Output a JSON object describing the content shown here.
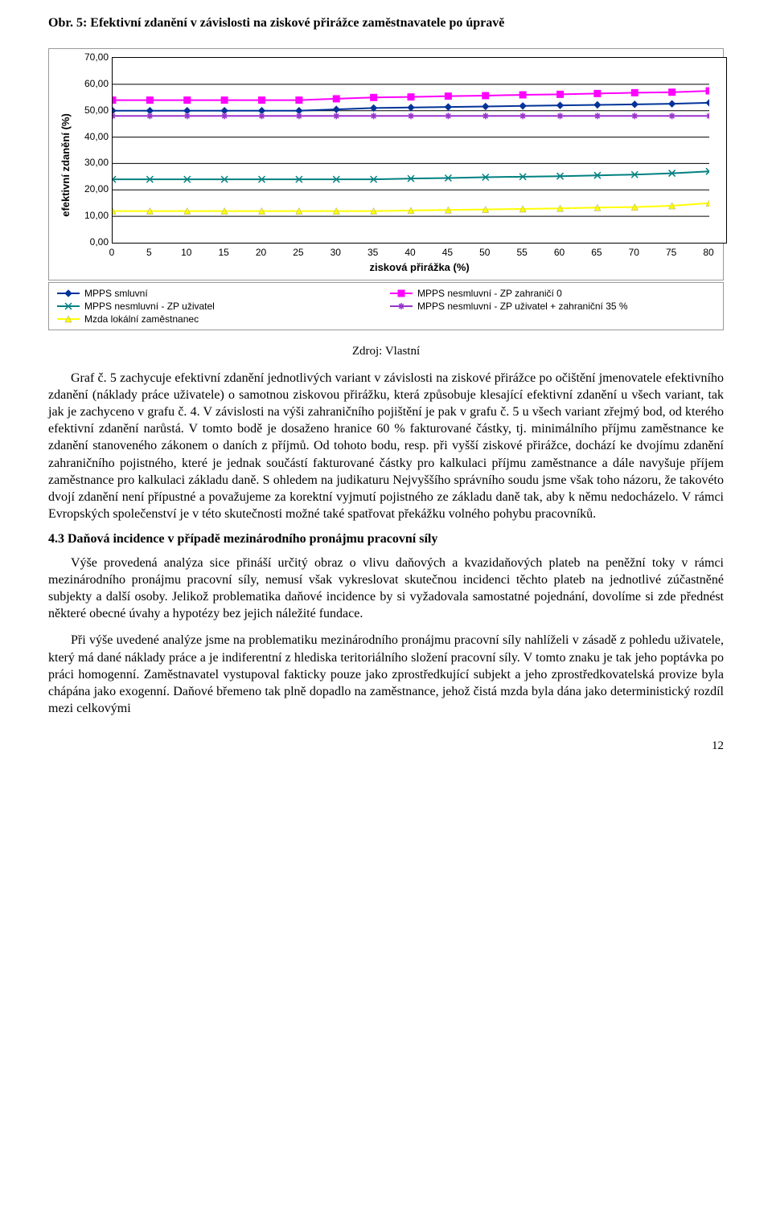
{
  "figure_caption": "Obr. 5: Efektivní zdanění v závislosti na ziskové přirážce zaměstnavatele po úpravě",
  "chart": {
    "type": "line",
    "ylabel": "efektivní zdanění (%)",
    "xlabel": "zisková přirážka (%)",
    "ylim": [
      0,
      70
    ],
    "ytick_step": 10,
    "ytick_labels": [
      "0,00",
      "10,00",
      "20,00",
      "30,00",
      "40,00",
      "50,00",
      "60,00",
      "70,00"
    ],
    "xlim": [
      0,
      80
    ],
    "xtick_step": 5,
    "xtick_labels": [
      "0",
      "5",
      "10",
      "15",
      "20",
      "25",
      "30",
      "35",
      "40",
      "45",
      "50",
      "55",
      "60",
      "65",
      "70",
      "75",
      "80"
    ],
    "background_color": "#ffffff",
    "grid_color": "#000000",
    "label_fontsize": 13,
    "tick_fontsize": 12,
    "series": [
      {
        "name": "MPPS smluvní",
        "color": "#003399",
        "marker": "diamond",
        "line_width": 2,
        "values": [
          50,
          50,
          50,
          50,
          50,
          50,
          50.5,
          51,
          51.2,
          51.4,
          51.6,
          51.8,
          52,
          52.2,
          52.4,
          52.6,
          53
        ]
      },
      {
        "name": "MPPS nesmluvní - ZP zahraničí 0",
        "color": "#ff00ff",
        "marker": "square",
        "line_width": 2,
        "values": [
          54,
          54,
          54,
          54,
          54,
          54,
          54.5,
          55,
          55.2,
          55.5,
          55.7,
          56,
          56.2,
          56.5,
          56.8,
          57,
          57.5
        ]
      },
      {
        "name": "MPPS nesmluvní - ZP uživatel",
        "color": "#008080",
        "marker": "x",
        "line_width": 2,
        "values": [
          24,
          24,
          24,
          24,
          24,
          24,
          24,
          24,
          24.3,
          24.5,
          24.8,
          25,
          25.2,
          25.5,
          25.8,
          26.3,
          27
        ]
      },
      {
        "name": "MPPS nesmluvní - ZP uživatel + zahraniční 35 %",
        "color": "#9933cc",
        "marker": "star",
        "line_width": 2,
        "values": [
          48,
          48,
          48,
          48,
          48,
          48,
          48,
          48,
          48,
          48,
          48,
          48,
          48,
          48,
          48,
          48,
          48
        ]
      },
      {
        "name": "Mzda lokální zaměstnanec",
        "color": "#ffff00",
        "marker": "triangle",
        "line_width": 2,
        "values": [
          12,
          12,
          12,
          12,
          12,
          12,
          12,
          12,
          12.2,
          12.4,
          12.6,
          12.8,
          13,
          13.3,
          13.5,
          14,
          15
        ]
      }
    ]
  },
  "source_line": "Zdroj: Vlastní",
  "para1": "Graf č. 5 zachycuje efektivní zdanění jednotlivých variant v závislosti na ziskové přirážce po očištění jmenovatele efektivního zdanění (náklady práce uživatele) o samotnou ziskovou přirážku, která způsobuje klesající efektivní zdanění u všech variant, tak jak je zachyceno v grafu č. 4. V závislosti na výši zahraničního pojištění je pak v grafu č. 5 u všech variant zřejmý bod, od kterého efektivní zdanění narůstá. V tomto bodě je dosaženo hranice 60 % fakturované částky, tj. minimálního příjmu zaměstnance ke zdanění stanoveného zákonem o daních z příjmů. Od tohoto bodu, resp. při vyšší ziskové přirážce, dochází ke dvojímu zdanění zahraničního pojistného, které je jednak součástí fakturované částky pro kalkulaci příjmu zaměstnance a dále navyšuje příjem zaměstnance pro kalkulaci základu daně. S ohledem na judikaturu Nejvyššího správního soudu jsme však toho názoru, že takovéto dvojí zdanění není přípustné a považujeme za korektní vyjmutí pojistného ze základu daně tak, aby k němu nedocházelo. V rámci Evropských společenství je v této skutečnosti možné také spatřovat překážku volného pohybu pracovníků.",
  "subheading": "4.3 Daňová incidence v případě mezinárodního pronájmu pracovní síly",
  "para2": "Výše provedená analýza sice přináší určitý obraz o vlivu daňových a kvazidaňových plateb na peněžní toky v rámci mezinárodního pronájmu pracovní síly, nemusí však vykreslovat skutečnou incidenci těchto plateb na jednotlivé zúčastněné subjekty a další osoby. Jelikož problematika daňové incidence by si vyžadovala samostatné pojednání, dovolíme si zde přednést některé obecné úvahy a hypotézy bez jejich náležité fundace.",
  "para3": "Při výše uvedené analýze jsme na problematiku mezinárodního pronájmu pracovní síly nahlíželi v zásadě z pohledu uživatele, který má dané náklady práce a je indiferentní z hlediska teritoriálního složení pracovní síly. V tomto znaku je tak jeho poptávka po práci homogenní. Zaměstnavatel vystupoval fakticky pouze jako zprostředkující subjekt a jeho zprostředkovatelská provize byla chápána jako exogenní. Daňové břemeno tak plně dopadlo na zaměstnance, jehož čistá mzda byla dána jako deterministický rozdíl mezi celkovými",
  "page_number": "12"
}
